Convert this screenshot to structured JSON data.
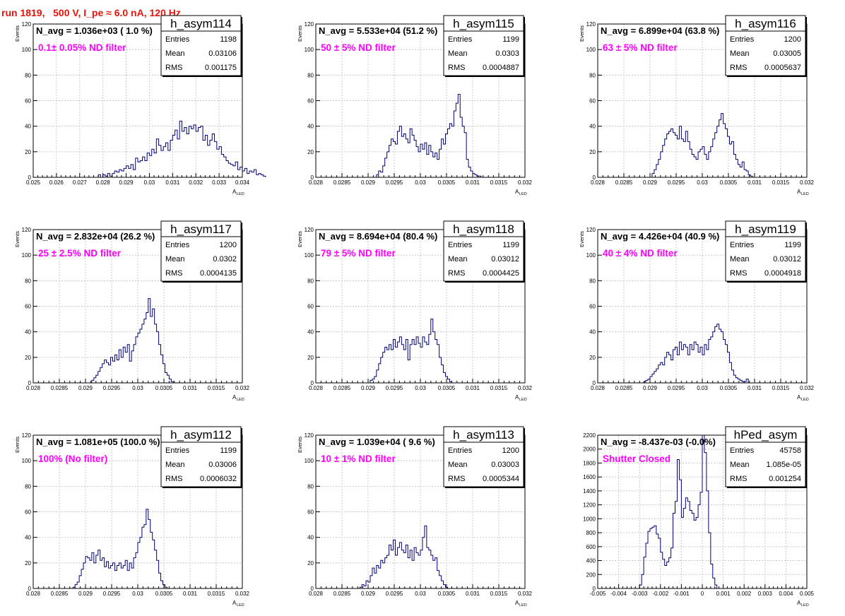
{
  "header": {
    "title": "run 1819,   500 V, I_pe ≈ 6.0 nA, 120 Hz"
  },
  "colors": {
    "title": "#e8140a",
    "annotation": "#ff00ff",
    "histogram": "#00007a",
    "grid": "#c8c8c8"
  },
  "chart_data": [
    {
      "type": "step-histogram",
      "name": "h_asym114",
      "navg": "N_avg = 1.036e+03 ( 1.0 %)",
      "annotation": "0.1± 0.05% ND filter",
      "stats": {
        "entries": "1198",
        "mean": "0.03106",
        "rms": "0.001175"
      },
      "stat_labels": [
        "Entries",
        "Mean",
        "RMS"
      ],
      "xlabel": "A_LED",
      "ylabel": "Events",
      "xlim": [
        0.025,
        0.034
      ],
      "ylim": [
        0,
        120
      ],
      "xticks": [
        0.025,
        0.026,
        0.027,
        0.028,
        0.029,
        0.03,
        0.031,
        0.032,
        0.033,
        0.034
      ],
      "xticklabels": [
        "0.025",
        "0.026",
        "0.027",
        "0.028",
        "0.029",
        "0.03",
        "0.031",
        "0.032",
        "0.033",
        "0.034"
      ],
      "yticks": [
        0,
        20,
        40,
        60,
        80,
        100,
        120
      ],
      "bins": {
        "start": 0.0278,
        "width": 0.0001,
        "counts": [
          2,
          0,
          2,
          1,
          3,
          1,
          3,
          5,
          4,
          6,
          5,
          7,
          9,
          7,
          10,
          6,
          15,
          12,
          13,
          16,
          13,
          19,
          17,
          22,
          19,
          30,
          25,
          21,
          24,
          27,
          21,
          29,
          33,
          37,
          30,
          44,
          36,
          39,
          34,
          40,
          38,
          41,
          36,
          39,
          40,
          29,
          33,
          25,
          29,
          34,
          28,
          22,
          24,
          18,
          16,
          13,
          11,
          10,
          9,
          12,
          6,
          8,
          5,
          7,
          3,
          5,
          4,
          6,
          2,
          3,
          2,
          1
        ]
      }
    },
    {
      "type": "step-histogram",
      "name": "h_asym115",
      "navg": "N_avg = 5.533e+04 (51.2 %)",
      "annotation": "50 ± 5% ND filter",
      "stats": {
        "entries": "1199",
        "mean": "0.0303",
        "rms": "0.0004887"
      },
      "stat_labels": [
        "Entries",
        "Mean",
        "RMS"
      ],
      "xlabel": "A_LED",
      "ylabel": "Events",
      "xlim": [
        0.028,
        0.032
      ],
      "ylim": [
        0,
        120
      ],
      "xticks": [
        0.028,
        0.0285,
        0.029,
        0.0295,
        0.03,
        0.0305,
        0.031,
        0.0315,
        0.032
      ],
      "xticklabels": [
        "0.028",
        "0.0285",
        "0.029",
        "0.0295",
        "0.03",
        "0.0305",
        "0.031",
        "0.0315",
        "0.032"
      ],
      "yticks": [
        0,
        20,
        40,
        60,
        80,
        100,
        120
      ],
      "bins": {
        "start": 0.02916,
        "width": 4e-05,
        "counts": [
          2,
          5,
          4,
          9,
          15,
          20,
          25,
          30,
          28,
          26,
          36,
          40,
          32,
          34,
          30,
          27,
          38,
          33,
          29,
          24,
          20,
          26,
          22,
          27,
          18,
          25,
          20,
          16,
          19,
          14,
          22,
          30,
          26,
          34,
          38,
          42,
          40,
          52,
          58,
          65,
          47,
          40,
          35,
          14,
          8,
          5,
          3,
          2,
          1,
          1
        ]
      }
    },
    {
      "type": "step-histogram",
      "name": "h_asym116",
      "navg": "N_avg = 6.899e+04 (63.8 %)",
      "annotation": "63 ± 5% ND filter",
      "stats": {
        "entries": "1200",
        "mean": "0.03005",
        "rms": "0.0005637"
      },
      "stat_labels": [
        "Entries",
        "Mean",
        "RMS"
      ],
      "xlabel": "A_LED",
      "ylabel": "Events",
      "xlim": [
        0.028,
        0.032
      ],
      "ylim": [
        0,
        120
      ],
      "xticks": [
        0.028,
        0.0285,
        0.029,
        0.0295,
        0.03,
        0.0305,
        0.031,
        0.0315,
        0.032
      ],
      "xticklabels": [
        "0.028",
        "0.0285",
        "0.029",
        "0.0295",
        "0.03",
        "0.0305",
        "0.031",
        "0.0315",
        "0.032"
      ],
      "yticks": [
        0,
        20,
        40,
        60,
        80,
        100,
        120
      ],
      "bins": {
        "start": 0.02904,
        "width": 4e-05,
        "counts": [
          3,
          6,
          10,
          14,
          20,
          25,
          30,
          34,
          36,
          38,
          35,
          33,
          30,
          40,
          30,
          28,
          36,
          28,
          22,
          18,
          16,
          14,
          20,
          22,
          24,
          18,
          14,
          20,
          24,
          30,
          35,
          40,
          45,
          50,
          42,
          38,
          32,
          26,
          28,
          18,
          14,
          10,
          8,
          12,
          6,
          5,
          2,
          1
        ]
      }
    },
    {
      "type": "step-histogram",
      "name": "h_asym117",
      "navg": "N_avg = 2.832e+04 (26.2 %)",
      "annotation": "25 ± 2.5% ND filter",
      "stats": {
        "entries": "1200",
        "mean": "0.0302",
        "rms": "0.0004135"
      },
      "stat_labels": [
        "Entries",
        "Mean",
        "RMS"
      ],
      "xlabel": "A_LED",
      "ylabel": "Events",
      "xlim": [
        0.028,
        0.032
      ],
      "ylim": [
        0,
        120
      ],
      "xticks": [
        0.028,
        0.0285,
        0.029,
        0.0295,
        0.03,
        0.0305,
        0.031,
        0.0315,
        0.032
      ],
      "xticklabels": [
        "0.028",
        "0.0285",
        "0.029",
        "0.0295",
        "0.03",
        "0.0305",
        "0.031",
        "0.0315",
        "0.032"
      ],
      "yticks": [
        0,
        20,
        40,
        60,
        80,
        100,
        120
      ],
      "bins": {
        "start": 0.02912,
        "width": 4e-05,
        "counts": [
          2,
          4,
          6,
          9,
          12,
          15,
          18,
          16,
          14,
          20,
          17,
          22,
          18,
          26,
          20,
          28,
          24,
          30,
          17,
          25,
          30,
          36,
          39,
          42,
          46,
          50,
          55,
          66,
          52,
          58,
          46,
          40,
          30,
          22,
          15,
          8,
          6,
          3,
          1
        ]
      }
    },
    {
      "type": "step-histogram",
      "name": "h_asym118",
      "navg": "N_avg = 8.694e+04 (80.4 %)",
      "annotation": "79 ± 5% ND filter",
      "stats": {
        "entries": "1199",
        "mean": "0.03012",
        "rms": "0.0004425"
      },
      "stat_labels": [
        "Entries",
        "Mean",
        "RMS"
      ],
      "xlabel": "A_LED",
      "ylabel": "Events",
      "xlim": [
        0.028,
        0.032
      ],
      "ylim": [
        0,
        120
      ],
      "xticks": [
        0.028,
        0.0285,
        0.029,
        0.0295,
        0.03,
        0.0305,
        0.031,
        0.0315,
        0.032
      ],
      "xticklabels": [
        "0.028",
        "0.0285",
        "0.029",
        "0.0295",
        "0.03",
        "0.0305",
        "0.031",
        "0.0315",
        "0.032"
      ],
      "yticks": [
        0,
        20,
        40,
        60,
        80,
        100,
        120
      ],
      "bins": {
        "start": 0.02904,
        "width": 4e-05,
        "counts": [
          2,
          3,
          5,
          10,
          15,
          20,
          24,
          28,
          26,
          30,
          26,
          34,
          28,
          32,
          36,
          30,
          26,
          34,
          18,
          30,
          34,
          30,
          36,
          31,
          28,
          36,
          32,
          30,
          38,
          50,
          40,
          34,
          30,
          20,
          14,
          8,
          5,
          3,
          1
        ]
      }
    },
    {
      "type": "step-histogram",
      "name": "h_asym119",
      "navg": "N_avg = 4.426e+04 (40.9 %)",
      "annotation": "40 ± 4% ND filter",
      "stats": {
        "entries": "1199",
        "mean": "0.03012",
        "rms": "0.0004918"
      },
      "stat_labels": [
        "Entries",
        "Mean",
        "RMS"
      ],
      "xlabel": "A_LED",
      "ylabel": "Events",
      "xlim": [
        0.028,
        0.032
      ],
      "ylim": [
        0,
        120
      ],
      "xticks": [
        0.028,
        0.0285,
        0.029,
        0.0295,
        0.03,
        0.0305,
        0.031,
        0.0315,
        0.032
      ],
      "xticklabels": [
        "0.028",
        "0.0285",
        "0.029",
        "0.0295",
        "0.03",
        "0.0305",
        "0.031",
        "0.0315",
        "0.032"
      ],
      "yticks": [
        0,
        20,
        40,
        60,
        80,
        100,
        120
      ],
      "bins": {
        "start": 0.02888,
        "width": 4e-05,
        "counts": [
          1,
          2,
          3,
          5,
          7,
          9,
          11,
          14,
          16,
          14,
          20,
          24,
          22,
          18,
          26,
          28,
          22,
          32,
          26,
          30,
          28,
          22,
          30,
          26,
          32,
          30,
          24,
          28,
          22,
          30,
          26,
          34,
          36,
          40,
          44,
          46,
          42,
          40,
          34,
          30,
          24,
          16,
          10,
          6,
          4,
          3,
          2,
          1,
          1,
          3
        ]
      }
    },
    {
      "type": "step-histogram",
      "name": "h_asym112",
      "navg": "N_avg = 1.081e+05 (100.0 %)",
      "annotation": "100% (No filter)",
      "stats": {
        "entries": "1199",
        "mean": "0.03006",
        "rms": "0.0006032"
      },
      "stat_labels": [
        "Entries",
        "Mean",
        "RMS"
      ],
      "xlabel": "A_LED",
      "ylabel": "Events",
      "xlim": [
        0.028,
        0.032
      ],
      "ylim": [
        0,
        120
      ],
      "xticks": [
        0.028,
        0.0285,
        0.029,
        0.0295,
        0.03,
        0.0305,
        0.031,
        0.0315,
        0.032
      ],
      "xticklabels": [
        "0.028",
        "0.0285",
        "0.029",
        "0.0295",
        "0.03",
        "0.0305",
        "0.031",
        "0.0315",
        "0.032"
      ],
      "yticks": [
        0,
        20,
        40,
        60,
        80,
        100,
        120
      ],
      "bins": {
        "start": 0.02876,
        "width": 4e-05,
        "counts": [
          1,
          3,
          5,
          10,
          15,
          20,
          25,
          24,
          22,
          28,
          20,
          26,
          30,
          22,
          24,
          17,
          21,
          16,
          18,
          20,
          14,
          18,
          20,
          16,
          18,
          22,
          14,
          20,
          16,
          24,
          28,
          36,
          40,
          48,
          50,
          62,
          54,
          44,
          38,
          30,
          22,
          12,
          6,
          3,
          1
        ]
      }
    },
    {
      "type": "step-histogram",
      "name": "h_asym113",
      "navg": "N_avg = 1.039e+04 ( 9.6 %)",
      "annotation": "10 ± 1% ND filter",
      "stats": {
        "entries": "1200",
        "mean": "0.03003",
        "rms": "0.0005344"
      },
      "stat_labels": [
        "Entries",
        "Mean",
        "RMS"
      ],
      "xlabel": "A_LED",
      "ylabel": "Events",
      "xlim": [
        0.028,
        0.032
      ],
      "ylim": [
        0,
        120
      ],
      "xticks": [
        0.028,
        0.0285,
        0.029,
        0.0295,
        0.03,
        0.0305,
        0.031,
        0.0315,
        0.032
      ],
      "xticklabels": [
        "0.028",
        "0.0285",
        "0.029",
        "0.0295",
        "0.03",
        "0.0305",
        "0.031",
        "0.0315",
        "0.032"
      ],
      "yticks": [
        0,
        20,
        40,
        60,
        80,
        100,
        120
      ],
      "bins": {
        "start": 0.02884,
        "width": 4e-05,
        "counts": [
          1,
          3,
          2,
          6,
          5,
          10,
          16,
          12,
          18,
          16,
          22,
          20,
          24,
          26,
          34,
          30,
          38,
          26,
          32,
          36,
          30,
          28,
          34,
          24,
          30,
          22,
          32,
          28,
          26,
          30,
          40,
          49,
          32,
          30,
          26,
          22,
          24,
          14,
          10,
          6,
          3,
          1
        ]
      }
    },
    {
      "type": "step-histogram",
      "name": "hPed_asym",
      "navg": "N_avg = -8.437e-03 (-0.0%)",
      "annotation": "Shutter Closed",
      "stats": {
        "entries": "45758",
        "mean": "1.085e-05",
        "rms": "0.001254"
      },
      "stat_labels": [
        "Entries",
        "Mean",
        "RMS"
      ],
      "xlabel": "A_LED",
      "ylabel": "",
      "xlim": [
        -0.005,
        0.005
      ],
      "ylim": [
        0,
        2200
      ],
      "xticks": [
        -0.005,
        -0.004,
        -0.003,
        -0.002,
        -0.001,
        0,
        0.001,
        0.002,
        0.003,
        0.004,
        0.005
      ],
      "xticklabels": [
        "-0.005",
        "-0.004",
        "-0.003",
        "-0.002",
        "-0.001",
        "0",
        "0.001",
        "0.002",
        "0.003",
        "0.004",
        "0.005"
      ],
      "yticks": [
        0,
        200,
        400,
        600,
        800,
        1000,
        1200,
        1400,
        1600,
        1800,
        2000,
        2200
      ],
      "bins": {
        "start": -0.0031,
        "width": 0.0001,
        "counts": [
          0,
          50,
          200,
          450,
          650,
          820,
          860,
          880,
          900,
          780,
          720,
          520,
          420,
          330,
          380,
          440,
          580,
          1080,
          1250,
          1850,
          1560,
          1020,
          1150,
          1300,
          1250,
          1120,
          1080,
          980,
          1020,
          1200,
          1380,
          2200,
          1950,
          1400,
          800,
          350,
          150,
          50,
          0
        ]
      }
    }
  ]
}
